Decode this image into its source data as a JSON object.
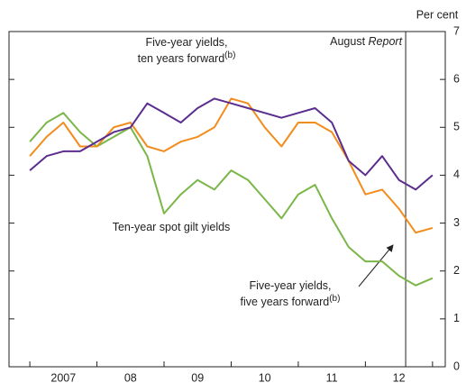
{
  "chart_data": {
    "type": "line",
    "x": [
      2007.0,
      2007.25,
      2007.5,
      2007.75,
      2008.0,
      2008.25,
      2008.5,
      2008.75,
      2009.0,
      2009.25,
      2009.5,
      2009.75,
      2010.0,
      2010.25,
      2010.5,
      2010.75,
      2011.0,
      2011.25,
      2011.5,
      2011.75,
      2012.0,
      2012.25,
      2012.5,
      2012.75,
      2013.0
    ],
    "series": [
      {
        "name": "Ten-year spot gilt yields",
        "color": "#7ab648",
        "values": [
          4.7,
          5.1,
          5.3,
          4.9,
          4.6,
          4.8,
          5.0,
          4.4,
          3.2,
          3.6,
          3.9,
          3.7,
          4.1,
          3.9,
          3.5,
          3.1,
          3.6,
          3.8,
          3.1,
          2.5,
          2.2,
          2.2,
          1.9,
          1.7,
          1.85
        ]
      },
      {
        "name": "Five-year yields, five years forward",
        "color": "#f28c1c",
        "values": [
          4.4,
          4.8,
          5.1,
          4.6,
          4.6,
          5.0,
          5.1,
          4.6,
          4.5,
          4.7,
          4.8,
          5.0,
          5.6,
          5.5,
          5.0,
          4.6,
          5.1,
          5.1,
          4.9,
          4.3,
          3.6,
          3.7,
          3.3,
          2.8,
          2.9
        ]
      },
      {
        "name": "Five-year yields, ten years forward",
        "color": "#5b2d8e",
        "values": [
          4.1,
          4.4,
          4.5,
          4.5,
          4.7,
          4.9,
          5.0,
          5.5,
          5.3,
          5.1,
          5.4,
          5.6,
          5.5,
          5.4,
          5.3,
          5.2,
          5.3,
          5.4,
          5.1,
          4.3,
          4.0,
          4.4,
          3.9,
          3.7,
          4.0
        ]
      }
    ],
    "xlim": [
      2006.69,
      2013.19
    ],
    "xticks": [
      {
        "value": 2007.5,
        "label": "2007"
      },
      {
        "value": 2008.5,
        "label": "08"
      },
      {
        "value": 2009.5,
        "label": "09"
      },
      {
        "value": 2010.5,
        "label": "10"
      },
      {
        "value": 2011.5,
        "label": "11"
      },
      {
        "value": 2012.5,
        "label": "12"
      }
    ],
    "ylim": [
      0,
      7
    ],
    "yticks": [
      0,
      1,
      2,
      3,
      4,
      5,
      6,
      7
    ],
    "y_label": "Per cent",
    "vline": {
      "x": 2012.6,
      "label": "August ",
      "label_italic": "Report"
    },
    "annotations": [
      {
        "lines": [
          "Five-year yields,",
          "ten years forward"
        ],
        "sup": "(b)"
      },
      {
        "lines": [
          "Ten-year spot gilt yields"
        ]
      },
      {
        "lines": [
          "Five-year yields,",
          "five years forward"
        ],
        "sup": "(b)"
      }
    ]
  }
}
